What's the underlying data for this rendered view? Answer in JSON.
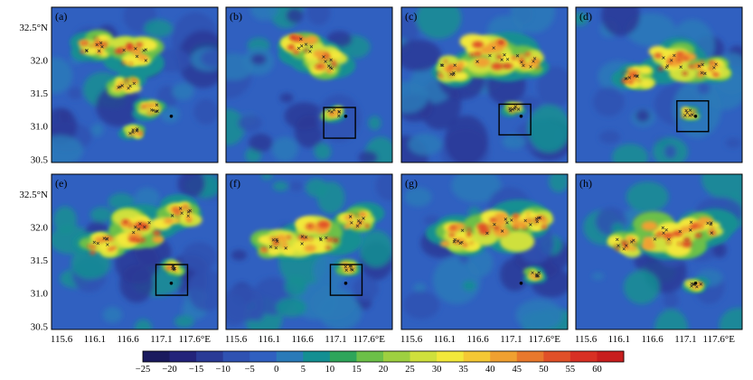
{
  "figure": {
    "panels": [
      {
        "label": "(a)",
        "box": false,
        "box_xy": null
      },
      {
        "label": "(b)",
        "box": true,
        "box_xy": [
          117.15,
          31.05
        ]
      },
      {
        "label": "(c)",
        "box": true,
        "box_xy": [
          117.15,
          31.1
        ]
      },
      {
        "label": "(d)",
        "box": true,
        "box_xy": [
          117.2,
          31.15
        ]
      },
      {
        "label": "(e)",
        "box": true,
        "box_xy": [
          117.25,
          31.2
        ]
      },
      {
        "label": "(f)",
        "box": true,
        "box_xy": [
          117.25,
          31.2
        ]
      },
      {
        "label": "(g)",
        "box": false,
        "box_xy": null
      },
      {
        "label": "(h)",
        "box": false,
        "box_xy": null
      }
    ],
    "axes": {
      "x_ticks": [
        "115.6",
        "116.1",
        "116.6",
        "117.1",
        "117.6°E"
      ],
      "x_values": [
        115.6,
        116.1,
        116.6,
        117.1,
        117.6
      ],
      "y_ticks": [
        "32.5°N",
        "32.0",
        "31.5",
        "31.0",
        "30.5"
      ],
      "y_values": [
        32.5,
        32.0,
        31.5,
        31.0,
        30.5
      ],
      "x_range": [
        115.45,
        117.95
      ],
      "y_range": [
        30.45,
        32.8
      ]
    },
    "colorbar": {
      "ticks": [
        "−25",
        "−20",
        "−15",
        "−10",
        "−5",
        "0",
        "5",
        "10",
        "15",
        "20",
        "25",
        "30",
        "35",
        "40",
        "45",
        "50",
        "55",
        "60"
      ],
      "colors": [
        "#1a1a5e",
        "#23237a",
        "#2a3a96",
        "#2f52b2",
        "#3060c0",
        "#2a7ab8",
        "#148f92",
        "#2ea55a",
        "#6cc048",
        "#9ed040",
        "#cfe03c",
        "#f2e83a",
        "#f4c834",
        "#f0a030",
        "#e8782c",
        "#e05028",
        "#d83024",
        "#c81e1e"
      ]
    }
  }
}
